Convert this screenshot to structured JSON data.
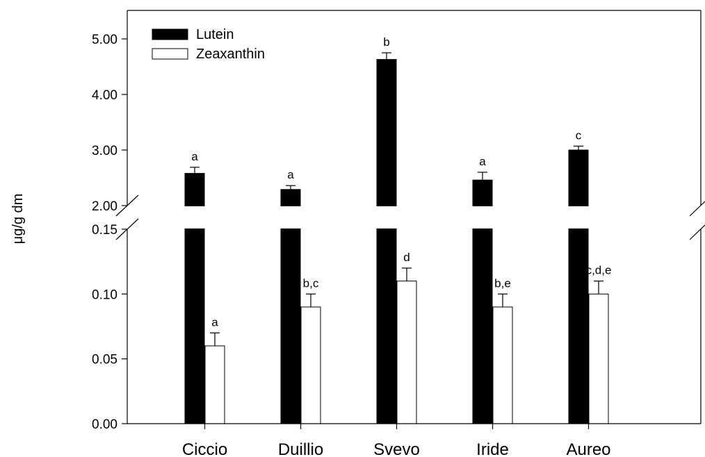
{
  "chart_data": {
    "type": "bar",
    "title": "",
    "xlabel": "",
    "ylabel": "μg/g dm",
    "categories": [
      "Ciccio",
      "Duillio",
      "Svevo",
      "Iride",
      "Aureo"
    ],
    "axis_break": {
      "lower_range": [
        0.0,
        0.15
      ],
      "upper_range": [
        2.0,
        5.0
      ]
    },
    "y_ticks_lower": [
      "0.00",
      "0.05",
      "0.10",
      "0.15"
    ],
    "y_ticks_upper": [
      "2.00",
      "3.00",
      "4.00",
      "5.00"
    ],
    "legend_position": "top-left",
    "grid": false,
    "series": [
      {
        "name": "Lutein",
        "fill": "#000000",
        "values": [
          2.58,
          2.29,
          4.63,
          2.46,
          3.0
        ],
        "errors": [
          0.11,
          0.07,
          0.12,
          0.14,
          0.07
        ],
        "letters": [
          "a",
          "a",
          "b",
          "a",
          "c"
        ]
      },
      {
        "name": "Zeaxanthin",
        "fill": "#ffffff",
        "values": [
          0.06,
          0.09,
          0.11,
          0.09,
          0.1
        ],
        "errors": [
          0.01,
          0.01,
          0.01,
          0.01,
          0.01
        ],
        "letters": [
          "a",
          "b,c",
          "d",
          "b,e",
          "c,d,e"
        ]
      }
    ]
  }
}
